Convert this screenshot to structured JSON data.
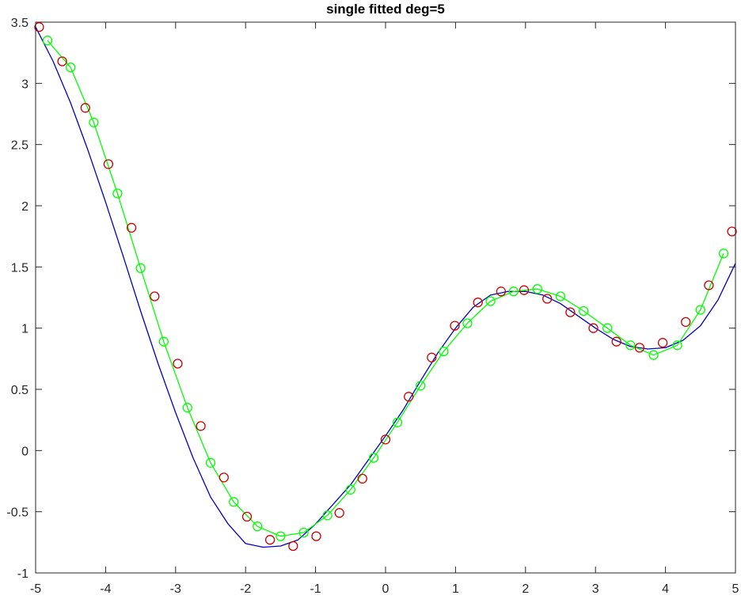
{
  "chart_data": {
    "type": "line",
    "title": "single fitted deg=5",
    "xlabel": "",
    "ylabel": "",
    "xlim": [
      -5,
      5
    ],
    "ylim": [
      -1,
      3.5
    ],
    "xticks": [
      -5,
      -4,
      -3,
      -2,
      -1,
      0,
      1,
      2,
      3,
      4,
      5
    ],
    "yticks": [
      -1,
      -0.5,
      0,
      0.5,
      1,
      1.5,
      2,
      2.5,
      3,
      3.5
    ],
    "xtick_labels": [
      "-5",
      "-4",
      "-3",
      "-2",
      "-1",
      "0",
      "1",
      "2",
      "3",
      "4",
      "5"
    ],
    "ytick_labels": [
      "-1",
      "-0.5",
      "0",
      "0.5",
      "1",
      "1.5",
      "2",
      "2.5",
      "3",
      "3.5"
    ],
    "grid": false,
    "series": [
      {
        "style": "line",
        "color": "#0000bf",
        "x": [
          -5.0,
          -4.75,
          -4.5,
          -4.25,
          -4.0,
          -3.75,
          -3.5,
          -3.25,
          -3.0,
          -2.75,
          -2.5,
          -2.25,
          -2.0,
          -1.75,
          -1.5,
          -1.25,
          -1.0,
          -0.75,
          -0.5,
          -0.25,
          0.0,
          0.25,
          0.5,
          0.75,
          1.0,
          1.25,
          1.5,
          1.75,
          2.0,
          2.25,
          2.5,
          2.75,
          3.0,
          3.25,
          3.5,
          3.75,
          4.0,
          4.25,
          4.5,
          4.75,
          5.0
        ],
        "y": [
          3.46,
          3.18,
          2.84,
          2.45,
          2.03,
          1.59,
          1.14,
          0.71,
          0.31,
          -0.06,
          -0.38,
          -0.6,
          -0.76,
          -0.79,
          -0.78,
          -0.73,
          -0.6,
          -0.44,
          -0.28,
          -0.08,
          0.12,
          0.33,
          0.57,
          0.8,
          1.0,
          1.17,
          1.27,
          1.3,
          1.3,
          1.27,
          1.2,
          1.1,
          1.0,
          0.91,
          0.85,
          0.83,
          0.84,
          0.9,
          1.02,
          1.23,
          1.53
        ]
      },
      {
        "style": "line+markers",
        "color": "#00ff00",
        "marker": "circle",
        "x": [
          -4.83,
          -4.5,
          -4.17,
          -3.83,
          -3.5,
          -3.17,
          -2.83,
          -2.5,
          -2.17,
          -1.83,
          -1.5,
          -1.17,
          -0.83,
          -0.5,
          -0.17,
          0.17,
          0.5,
          0.83,
          1.17,
          1.5,
          1.83,
          2.17,
          2.5,
          2.83,
          3.17,
          3.5,
          3.83,
          4.17,
          4.5,
          4.83
        ],
        "y": [
          3.35,
          3.13,
          2.68,
          2.1,
          1.49,
          0.89,
          0.35,
          -0.1,
          -0.42,
          -0.62,
          -0.7,
          -0.67,
          -0.53,
          -0.32,
          -0.06,
          0.23,
          0.53,
          0.81,
          1.04,
          1.22,
          1.3,
          1.32,
          1.26,
          1.14,
          1.0,
          0.86,
          0.78,
          0.86,
          1.15,
          1.61
        ]
      },
      {
        "style": "markers",
        "color": "#cc0000",
        "marker": "circle",
        "x": [
          -4.95,
          -4.62,
          -4.29,
          -3.96,
          -3.63,
          -3.3,
          -2.97,
          -2.64,
          -2.31,
          -1.98,
          -1.65,
          -1.32,
          -0.99,
          -0.66,
          -0.33,
          0.0,
          0.33,
          0.66,
          0.99,
          1.32,
          1.65,
          1.98,
          2.31,
          2.64,
          2.97,
          3.3,
          3.63,
          3.96,
          4.29,
          4.62,
          4.95
        ],
        "y": [
          3.46,
          3.18,
          2.8,
          2.34,
          1.82,
          1.26,
          0.71,
          0.2,
          -0.22,
          -0.54,
          -0.73,
          -0.78,
          -0.7,
          -0.51,
          -0.23,
          0.09,
          0.44,
          0.76,
          1.02,
          1.21,
          1.3,
          1.31,
          1.24,
          1.13,
          1.0,
          0.89,
          0.84,
          0.88,
          1.05,
          1.35,
          1.79
        ]
      }
    ]
  }
}
